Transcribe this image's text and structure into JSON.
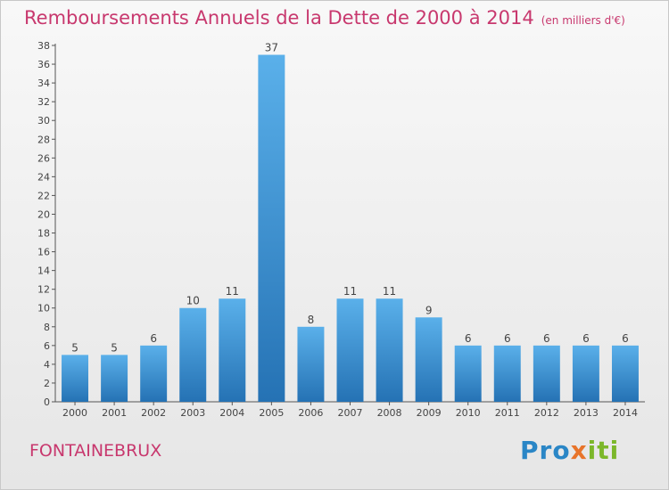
{
  "header": {
    "title": "Remboursements Annuels de la Dette de 2000 à 2014",
    "unit": "(en milliers d'€)"
  },
  "footer": {
    "commune": "FONTAINEBRUX",
    "logo_part1": "Pro",
    "logo_part2": "x",
    "logo_part3": "iti"
  },
  "colors": {
    "title": "#c8386e",
    "bar_top": "#5ab0ea",
    "bar_bottom": "#2572b4",
    "axis": "#555555"
  },
  "chart_data": {
    "type": "bar",
    "title": "Remboursements Annuels de la Dette de 2000 à 2014",
    "xlabel": "",
    "ylabel": "",
    "categories": [
      "2000",
      "2001",
      "2002",
      "2003",
      "2004",
      "2005",
      "2006",
      "2007",
      "2008",
      "2009",
      "2010",
      "2011",
      "2012",
      "2013",
      "2014"
    ],
    "values": [
      5,
      5,
      6,
      10,
      11,
      37,
      8,
      11,
      11,
      9,
      6,
      6,
      6,
      6,
      6
    ],
    "ylim": [
      0,
      38
    ],
    "yticks": [
      0,
      2,
      4,
      6,
      8,
      10,
      12,
      14,
      16,
      18,
      20,
      22,
      24,
      26,
      28,
      30,
      32,
      34,
      36,
      38
    ],
    "grid": false,
    "legend": "none"
  }
}
